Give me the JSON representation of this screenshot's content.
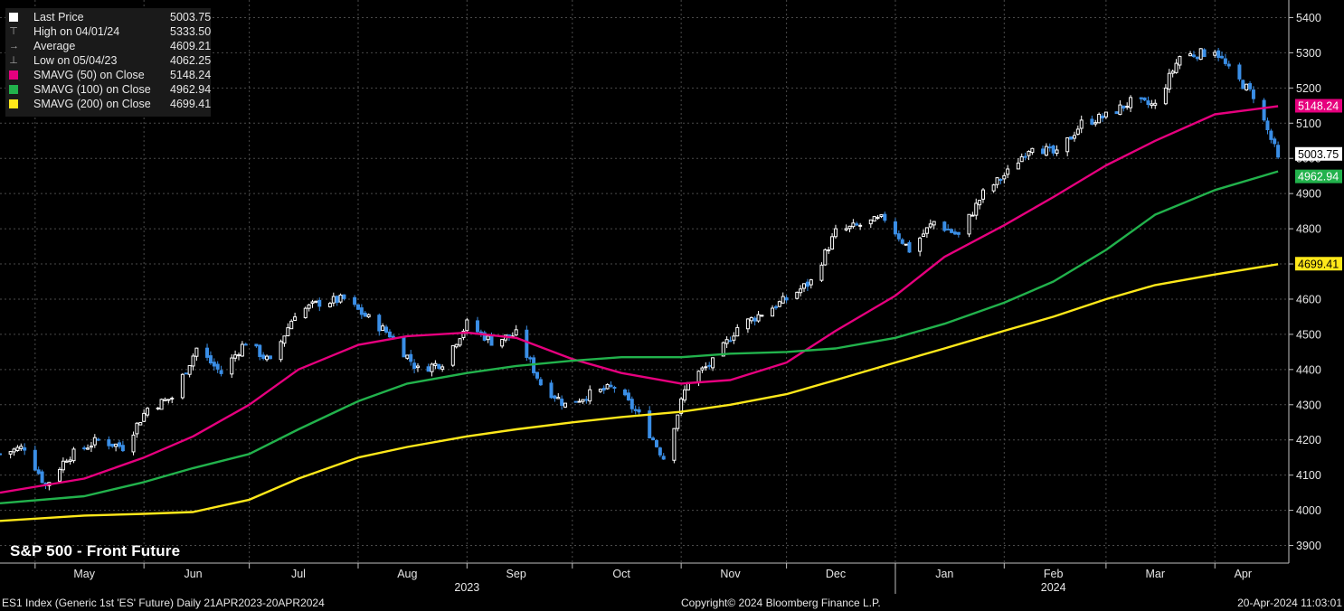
{
  "legend": {
    "rows": [
      {
        "label": "Last Price",
        "value": "5003.75",
        "color": "#ffffff",
        "marker": "swatch"
      },
      {
        "label": "High on 04/01/24",
        "value": "5333.50",
        "color": "#aaaaaa",
        "marker": "high"
      },
      {
        "label": "Average",
        "value": "4609.21",
        "color": "#aaaaaa",
        "marker": "avg"
      },
      {
        "label": "Low on 05/04/23",
        "value": "4062.25",
        "color": "#aaaaaa",
        "marker": "low"
      },
      {
        "label": "SMAVG (50)  on Close",
        "value": "5148.24",
        "color": "#e6007e",
        "marker": "swatch"
      },
      {
        "label": "SMAVG (100)  on Close",
        "value": "4962.94",
        "color": "#22b24c",
        "marker": "swatch"
      },
      {
        "label": "SMAVG (200)  on Close",
        "value": "4699.41",
        "color": "#ffe81a",
        "marker": "swatch"
      }
    ]
  },
  "title": "S&P 500 - Front Future",
  "footer": {
    "left": "ES1 Index (Generic 1st 'ES' Future)  Daily 21APR2023-20APR2024",
    "middle": "Copyright© 2024 Bloomberg Finance L.P.",
    "right": "20-Apr-2024 11:03:01"
  },
  "chart_data": {
    "type": "candlestick",
    "x_range": [
      "2023-04-21",
      "2024-04-20"
    ],
    "ylim": [
      3850,
      5450
    ],
    "y_ticks": [
      3900,
      4000,
      4100,
      4200,
      4300,
      4400,
      4500,
      4600,
      4700,
      4800,
      4900,
      5000,
      5100,
      5200,
      5300,
      5400
    ],
    "x_tick_labels": [
      {
        "label": "May",
        "date": "2023-05-15"
      },
      {
        "label": "Jun",
        "date": "2023-06-15"
      },
      {
        "label": "Jul",
        "date": "2023-07-15"
      },
      {
        "label": "Aug",
        "date": "2023-08-15"
      },
      {
        "label": "Sep",
        "date": "2023-09-15"
      },
      {
        "label": "Oct",
        "date": "2023-10-15"
      },
      {
        "label": "Nov",
        "date": "2023-11-15"
      },
      {
        "label": "Dec",
        "date": "2023-12-15"
      },
      {
        "label": "Jan",
        "date": "2024-01-15"
      },
      {
        "label": "Feb",
        "date": "2024-02-15"
      },
      {
        "label": "Mar",
        "date": "2024-03-15"
      },
      {
        "label": "Apr",
        "date": "2024-04-09"
      }
    ],
    "year_labels": [
      {
        "label": "2023",
        "date": "2023-09-01"
      },
      {
        "label": "2024",
        "date": "2024-02-15"
      }
    ],
    "year_divider": "2024-01-01",
    "up_color": "#ffffff",
    "down_color": "#3a8ee6",
    "price_path": [
      [
        "2023-04-21",
        4160
      ],
      [
        "2023-04-28",
        4180
      ],
      [
        "2023-05-04",
        4070
      ],
      [
        "2023-05-10",
        4150
      ],
      [
        "2023-05-19",
        4200
      ],
      [
        "2023-05-26",
        4180
      ],
      [
        "2023-06-02",
        4290
      ],
      [
        "2023-06-09",
        4320
      ],
      [
        "2023-06-16",
        4460
      ],
      [
        "2023-06-23",
        4390
      ],
      [
        "2023-06-30",
        4480
      ],
      [
        "2023-07-07",
        4420
      ],
      [
        "2023-07-14",
        4560
      ],
      [
        "2023-07-21",
        4590
      ],
      [
        "2023-07-28",
        4600
      ],
      [
        "2023-08-02",
        4560
      ],
      [
        "2023-08-10",
        4500
      ],
      [
        "2023-08-18",
        4400
      ],
      [
        "2023-08-25",
        4420
      ],
      [
        "2023-09-01",
        4530
      ],
      [
        "2023-09-08",
        4480
      ],
      [
        "2023-09-15",
        4500
      ],
      [
        "2023-09-22",
        4360
      ],
      [
        "2023-09-29",
        4300
      ],
      [
        "2023-10-06",
        4330
      ],
      [
        "2023-10-13",
        4350
      ],
      [
        "2023-10-20",
        4270
      ],
      [
        "2023-10-27",
        4150
      ],
      [
        "2023-11-03",
        4370
      ],
      [
        "2023-11-10",
        4420
      ],
      [
        "2023-11-17",
        4520
      ],
      [
        "2023-11-24",
        4560
      ],
      [
        "2023-12-01",
        4600
      ],
      [
        "2023-12-08",
        4650
      ],
      [
        "2023-12-15",
        4790
      ],
      [
        "2023-12-22",
        4810
      ],
      [
        "2023-12-29",
        4830
      ],
      [
        "2024-01-05",
        4740
      ],
      [
        "2024-01-12",
        4820
      ],
      [
        "2024-01-19",
        4780
      ],
      [
        "2024-01-26",
        4900
      ],
      [
        "2024-02-02",
        4960
      ],
      [
        "2024-02-09",
        5040
      ],
      [
        "2024-02-16",
        5010
      ],
      [
        "2024-02-23",
        5100
      ],
      [
        "2024-03-01",
        5120
      ],
      [
        "2024-03-08",
        5160
      ],
      [
        "2024-03-15",
        5150
      ],
      [
        "2024-03-22",
        5290
      ],
      [
        "2024-03-29",
        5300
      ],
      [
        "2024-04-01",
        5310
      ],
      [
        "2024-04-05",
        5250
      ],
      [
        "2024-04-12",
        5180
      ],
      [
        "2024-04-19",
        5003.75
      ]
    ],
    "series": [
      {
        "name": "SMAVG (50)  on Close",
        "color": "#e6007e",
        "last": 5148.24,
        "points": [
          [
            "2023-04-21",
            4050
          ],
          [
            "2023-05-15",
            4090
          ],
          [
            "2023-06-01",
            4150
          ],
          [
            "2023-06-15",
            4210
          ],
          [
            "2023-07-01",
            4300
          ],
          [
            "2023-07-15",
            4400
          ],
          [
            "2023-08-01",
            4470
          ],
          [
            "2023-08-15",
            4495
          ],
          [
            "2023-09-01",
            4505
          ],
          [
            "2023-09-15",
            4490
          ],
          [
            "2023-10-01",
            4430
          ],
          [
            "2023-10-15",
            4390
          ],
          [
            "2023-11-01",
            4360
          ],
          [
            "2023-11-15",
            4370
          ],
          [
            "2023-12-01",
            4420
          ],
          [
            "2023-12-15",
            4510
          ],
          [
            "2024-01-01",
            4610
          ],
          [
            "2024-01-15",
            4720
          ],
          [
            "2024-02-01",
            4810
          ],
          [
            "2024-02-15",
            4890
          ],
          [
            "2024-03-01",
            4980
          ],
          [
            "2024-03-15",
            5050
          ],
          [
            "2024-04-01",
            5125
          ],
          [
            "2024-04-19",
            5148.24
          ]
        ]
      },
      {
        "name": "SMAVG (100)  on Close",
        "color": "#22b24c",
        "last": 4962.94,
        "points": [
          [
            "2023-04-21",
            4020
          ],
          [
            "2023-05-15",
            4040
          ],
          [
            "2023-06-01",
            4080
          ],
          [
            "2023-06-15",
            4120
          ],
          [
            "2023-07-01",
            4160
          ],
          [
            "2023-07-15",
            4230
          ],
          [
            "2023-08-01",
            4310
          ],
          [
            "2023-08-15",
            4360
          ],
          [
            "2023-09-01",
            4390
          ],
          [
            "2023-09-15",
            4410
          ],
          [
            "2023-10-01",
            4425
          ],
          [
            "2023-10-15",
            4435
          ],
          [
            "2023-11-01",
            4435
          ],
          [
            "2023-11-15",
            4445
          ],
          [
            "2023-12-01",
            4450
          ],
          [
            "2023-12-15",
            4460
          ],
          [
            "2024-01-01",
            4490
          ],
          [
            "2024-01-15",
            4530
          ],
          [
            "2024-02-01",
            4590
          ],
          [
            "2024-02-15",
            4650
          ],
          [
            "2024-03-01",
            4740
          ],
          [
            "2024-03-15",
            4840
          ],
          [
            "2024-04-01",
            4910
          ],
          [
            "2024-04-19",
            4962.94
          ]
        ]
      },
      {
        "name": "SMAVG (200)  on Close",
        "color": "#ffe81a",
        "last": 4699.41,
        "points": [
          [
            "2023-04-21",
            3970
          ],
          [
            "2023-05-15",
            3985
          ],
          [
            "2023-06-01",
            3990
          ],
          [
            "2023-06-15",
            3995
          ],
          [
            "2023-07-01",
            4030
          ],
          [
            "2023-07-15",
            4090
          ],
          [
            "2023-08-01",
            4150
          ],
          [
            "2023-08-15",
            4180
          ],
          [
            "2023-09-01",
            4210
          ],
          [
            "2023-09-15",
            4230
          ],
          [
            "2023-10-01",
            4250
          ],
          [
            "2023-10-15",
            4265
          ],
          [
            "2023-11-01",
            4280
          ],
          [
            "2023-11-15",
            4300
          ],
          [
            "2023-12-01",
            4330
          ],
          [
            "2023-12-15",
            4370
          ],
          [
            "2024-01-01",
            4420
          ],
          [
            "2024-01-15",
            4460
          ],
          [
            "2024-02-01",
            4510
          ],
          [
            "2024-02-15",
            4550
          ],
          [
            "2024-03-01",
            4600
          ],
          [
            "2024-03-15",
            4640
          ],
          [
            "2024-04-01",
            4670
          ],
          [
            "2024-04-19",
            4699.41
          ]
        ]
      }
    ],
    "last_price": {
      "value": 5003.75,
      "label": "5003.75",
      "color": "#ffffff"
    },
    "value_tags": [
      {
        "label": "5148.24",
        "value": 5148.24,
        "color": "#e6007e",
        "text_color": "#ffffff"
      },
      {
        "label": "5003.75",
        "value": 5003.75,
        "color": "#ffffff",
        "text_color": "#000000"
      },
      {
        "label": "4962.94",
        "value": 4962.94,
        "color": "#22b24c",
        "text_color": "#ffffff"
      },
      {
        "label": "4699.41",
        "value": 4699.41,
        "color": "#ffe81a",
        "text_color": "#000000"
      }
    ],
    "grid": true
  }
}
